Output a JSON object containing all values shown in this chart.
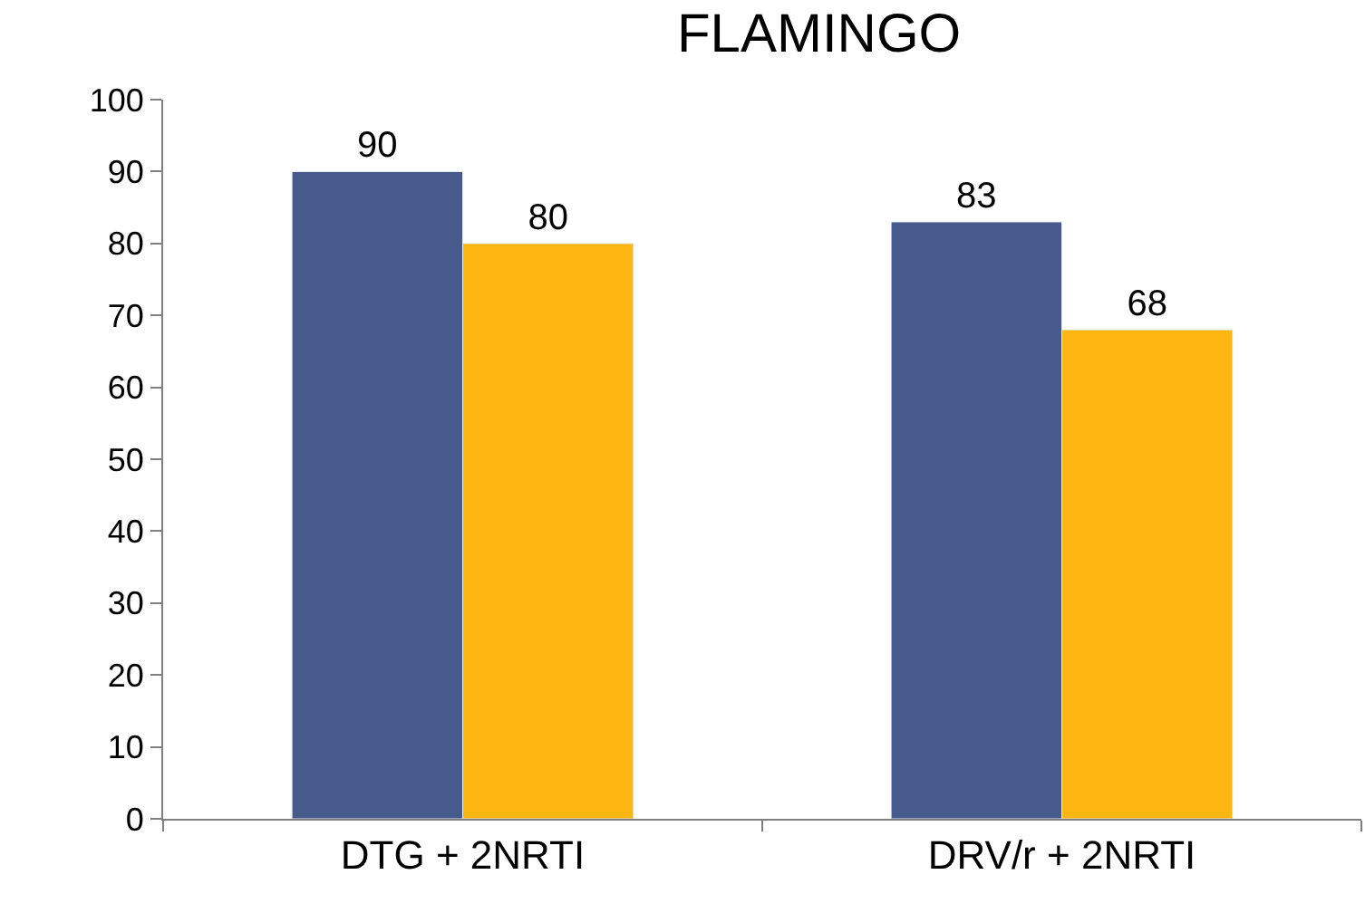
{
  "chart_data": {
    "type": "bar",
    "title": "FLAMINGO",
    "categories": [
      "DTG + 2NRTI",
      "DRV/r + 2NRTI"
    ],
    "series": [
      {
        "color": "#465a8b",
        "values": [
          90,
          83
        ]
      },
      {
        "color": "#fdb612",
        "values": [
          80,
          68
        ]
      }
    ],
    "ylim": [
      0,
      100
    ],
    "yticks": [
      0,
      10,
      20,
      30,
      40,
      50,
      60,
      70,
      80,
      90,
      100
    ],
    "legend": false,
    "data_labels": true
  }
}
